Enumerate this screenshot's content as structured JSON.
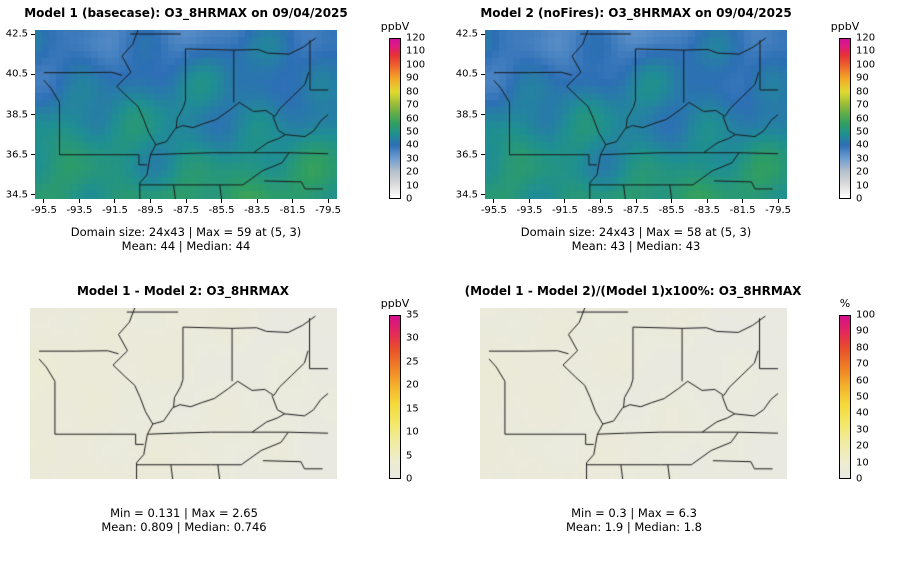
{
  "figure": {
    "bg": "#ffffff",
    "map_line_color": "#1a1a1a"
  },
  "chart_data": [
    {
      "type": "heatmap",
      "id": "model1-basecase",
      "title": "Model 1 (basecase): O3_8HRMAX on 09/04/2025",
      "unit": "ppbV",
      "stats_line1": "Domain size: 24x43 | Max = 59 at (5, 3)",
      "stats_line2": "Mean: 44 |  Median: 44",
      "x_ticks": [
        -95.5,
        -93.5,
        -91.5,
        -89.5,
        -87.5,
        -85.5,
        -83.5,
        -81.5,
        -79.5
      ],
      "y_ticks": [
        42.5,
        40.5,
        38.5,
        36.5,
        34.5
      ],
      "lon_range": [
        -96.0,
        -79.0
      ],
      "lat_range": [
        34.3,
        42.7
      ],
      "grid": {
        "rows": 24,
        "cols": 43
      },
      "axes": true,
      "colorbar": {
        "min": 0,
        "max": 120,
        "ticks": [
          0,
          10,
          20,
          30,
          40,
          50,
          60,
          70,
          80,
          90,
          100,
          110,
          120
        ],
        "stops": [
          [
            0,
            "#ffffff"
          ],
          [
            10,
            "#dcdcdc"
          ],
          [
            20,
            "#b5c0ca"
          ],
          [
            30,
            "#6d9cd1"
          ],
          [
            40,
            "#2d6fb5"
          ],
          [
            48,
            "#1f8f92"
          ],
          [
            56,
            "#2f9e62"
          ],
          [
            64,
            "#62ad47"
          ],
          [
            72,
            "#a3bf37"
          ],
          [
            80,
            "#e0da30"
          ],
          [
            90,
            "#f3a928"
          ],
          [
            100,
            "#ee622c"
          ],
          [
            108,
            "#e53137"
          ],
          [
            114,
            "#df1d7c"
          ],
          [
            120,
            "#d40f9a"
          ]
        ]
      },
      "field": {
        "kind": "conc",
        "base": 38,
        "south_gain": 15,
        "noise_amp": 7,
        "seed": 1
      }
    },
    {
      "type": "heatmap",
      "id": "model2-nofires",
      "title": "Model 2 (noFires): O3_8HRMAX on 09/04/2025",
      "unit": "ppbV",
      "stats_line1": "Domain size: 24x43 | Max = 58 at (5, 3)",
      "stats_line2": "Mean: 43 |  Median: 43",
      "x_ticks": [
        -95.5,
        -93.5,
        -91.5,
        -89.5,
        -87.5,
        -85.5,
        -83.5,
        -81.5,
        -79.5
      ],
      "y_ticks": [
        42.5,
        40.5,
        38.5,
        36.5,
        34.5
      ],
      "lon_range": [
        -96.0,
        -79.0
      ],
      "lat_range": [
        34.3,
        42.7
      ],
      "grid": {
        "rows": 24,
        "cols": 43
      },
      "axes": true,
      "colorbar": {
        "min": 0,
        "max": 120,
        "ticks": [
          0,
          10,
          20,
          30,
          40,
          50,
          60,
          70,
          80,
          90,
          100,
          110,
          120
        ],
        "stops": [
          [
            0,
            "#ffffff"
          ],
          [
            10,
            "#dcdcdc"
          ],
          [
            20,
            "#b5c0ca"
          ],
          [
            30,
            "#6d9cd1"
          ],
          [
            40,
            "#2d6fb5"
          ],
          [
            48,
            "#1f8f92"
          ],
          [
            56,
            "#2f9e62"
          ],
          [
            64,
            "#62ad47"
          ],
          [
            72,
            "#a3bf37"
          ],
          [
            80,
            "#e0da30"
          ],
          [
            90,
            "#f3a928"
          ],
          [
            100,
            "#ee622c"
          ],
          [
            108,
            "#e53137"
          ],
          [
            114,
            "#df1d7c"
          ],
          [
            120,
            "#d40f9a"
          ]
        ]
      },
      "field": {
        "kind": "conc",
        "base": 37.2,
        "south_gain": 15,
        "noise_amp": 7,
        "seed": 1
      }
    },
    {
      "type": "heatmap",
      "id": "model-difference",
      "title": "Model 1 - Model 2: O3_8HRMAX",
      "unit": "ppbV",
      "stats_line1": "Min = 0.131 | Max = 2.65",
      "stats_line2": "Mean: 0.809 |  Median: 0.746",
      "x_ticks": [],
      "y_ticks": [],
      "lon_range": [
        -96.0,
        -79.0
      ],
      "lat_range": [
        34.3,
        42.7
      ],
      "grid": {
        "rows": 24,
        "cols": 43
      },
      "axes": false,
      "colorbar": {
        "min": 0,
        "max": 35,
        "ticks": [
          0,
          5,
          10,
          15,
          20,
          25,
          30,
          35
        ],
        "stops": [
          [
            0,
            "#e9e9e2"
          ],
          [
            4,
            "#eeeccb"
          ],
          [
            8,
            "#f1eb9e"
          ],
          [
            12,
            "#f3e766"
          ],
          [
            16,
            "#f4da3a"
          ],
          [
            20,
            "#f4b02b"
          ],
          [
            24,
            "#ef7f26"
          ],
          [
            28,
            "#e94f2b"
          ],
          [
            31,
            "#e42b55"
          ],
          [
            35,
            "#d60f8e"
          ]
        ]
      },
      "field": {
        "kind": "diff",
        "peak": 2.6,
        "seed": 2
      }
    },
    {
      "type": "heatmap",
      "id": "percent-difference",
      "title": "(Model 1 - Model 2)/(Model 1)x100%: O3_8HRMAX",
      "unit": "%",
      "stats_line1": "Min = 0.3 | Max = 6.3",
      "stats_line2": "Mean: 1.9 |  Median: 1.8",
      "x_ticks": [],
      "y_ticks": [],
      "lon_range": [
        -96.0,
        -79.0
      ],
      "lat_range": [
        34.3,
        42.7
      ],
      "grid": {
        "rows": 24,
        "cols": 43
      },
      "axes": false,
      "colorbar": {
        "min": 0,
        "max": 100,
        "ticks": [
          0,
          10,
          20,
          30,
          40,
          50,
          60,
          70,
          80,
          90,
          100
        ],
        "stops": [
          [
            0,
            "#e9e9e2"
          ],
          [
            11,
            "#eeeccb"
          ],
          [
            23,
            "#f1eb9e"
          ],
          [
            34,
            "#f3e766"
          ],
          [
            45,
            "#f4da3a"
          ],
          [
            57,
            "#f4b02b"
          ],
          [
            68,
            "#ef7f26"
          ],
          [
            80,
            "#e94f2b"
          ],
          [
            89,
            "#e42b55"
          ],
          [
            100,
            "#d60f8e"
          ]
        ]
      },
      "field": {
        "kind": "diff",
        "peak": 6.0,
        "seed": 2
      }
    }
  ]
}
